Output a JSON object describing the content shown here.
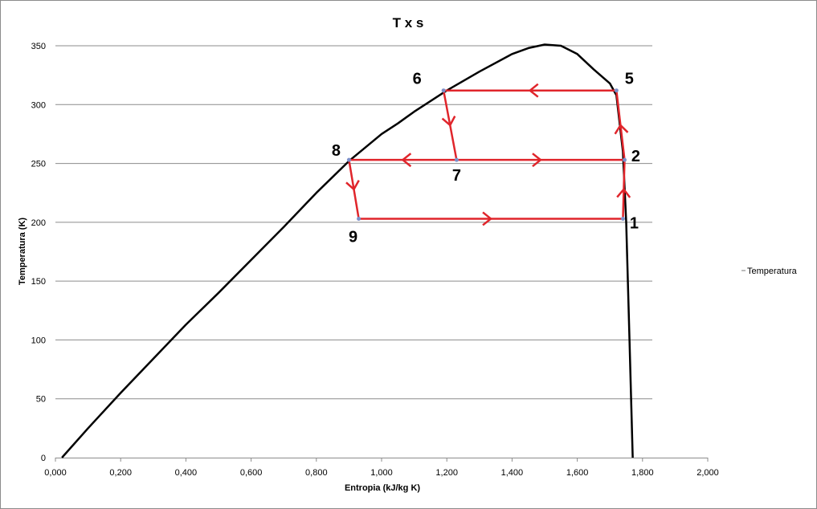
{
  "chart_data": {
    "type": "scatter",
    "title": "T x s",
    "xlabel": "Entropia (kJ/kg  K)",
    "ylabel": "Temperatura (K)",
    "xlim": [
      0,
      2.0
    ],
    "ylim": [
      0,
      350
    ],
    "x_ticks": [
      "0,000",
      "0,200",
      "0,400",
      "0,600",
      "0,800",
      "1,000",
      "1,200",
      "1,400",
      "1,600",
      "1,800",
      "2,000"
    ],
    "y_ticks": [
      "0",
      "50",
      "100",
      "150",
      "200",
      "250",
      "300",
      "350"
    ],
    "grid": "horizontal",
    "legend": {
      "position": "right",
      "entries": [
        "Temperatura"
      ]
    },
    "saturation_dome": {
      "color": "#000000",
      "x": [
        0.02,
        0.1,
        0.2,
        0.3,
        0.4,
        0.5,
        0.6,
        0.7,
        0.8,
        0.9,
        1.0,
        1.05,
        1.1,
        1.2,
        1.3,
        1.4,
        1.45,
        1.5,
        1.55,
        1.6,
        1.65,
        1.7,
        1.72,
        1.74,
        1.75,
        1.76,
        1.77
      ],
      "y": [
        0,
        25,
        55,
        84,
        113,
        140,
        168,
        196,
        225,
        252,
        275,
        284,
        294,
        312,
        328,
        343,
        348,
        351,
        350,
        343,
        330,
        318,
        308,
        260,
        200,
        100,
        0
      ]
    },
    "cycle": {
      "color": "#e0252b",
      "points": [
        {
          "label": "1",
          "s": 1.74,
          "T": 203
        },
        {
          "label": "2",
          "s": 1.745,
          "T": 253
        },
        {
          "label": "5",
          "s": 1.72,
          "T": 312
        },
        {
          "label": "6",
          "s": 1.19,
          "T": 312
        },
        {
          "label": "7",
          "s": 1.23,
          "T": 253
        },
        {
          "label": "8",
          "s": 0.9,
          "T": 253
        },
        {
          "label": "9",
          "s": 0.93,
          "T": 203
        }
      ],
      "segments": [
        [
          "9",
          "1"
        ],
        [
          "1",
          "2"
        ],
        [
          "2",
          "5"
        ],
        [
          "5",
          "6"
        ],
        [
          "6",
          "7"
        ],
        [
          "7",
          "2"
        ],
        [
          "7",
          "8"
        ],
        [
          "8",
          "9"
        ]
      ]
    }
  }
}
